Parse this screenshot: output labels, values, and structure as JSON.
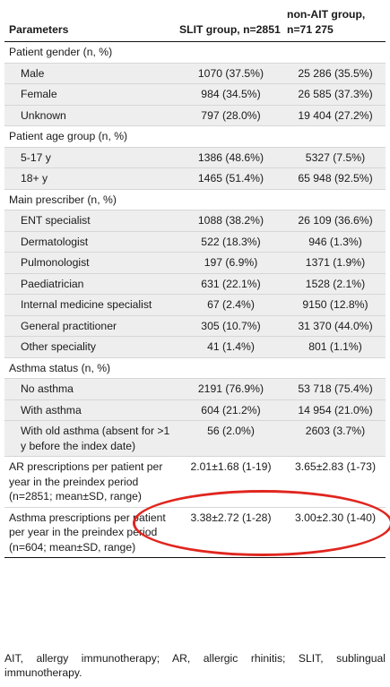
{
  "header": {
    "col1": "Parameters",
    "col2": "SLIT group, n=2851",
    "col3": "non-AIT group, n=71 275"
  },
  "rows": [
    {
      "type": "sec",
      "label": "Patient gender (n, %)",
      "slit": "",
      "nonait": ""
    },
    {
      "type": "sub",
      "label": "Male",
      "slit": "1070 (37.5%)",
      "nonait": "25 286 (35.5%)"
    },
    {
      "type": "sub",
      "label": "Female",
      "slit": "984 (34.5%)",
      "nonait": "26 585 (37.3%)"
    },
    {
      "type": "sub",
      "label": "Unknown",
      "slit": "797 (28.0%)",
      "nonait": "19 404 (27.2%)"
    },
    {
      "type": "sec",
      "label": "Patient age group (n, %)",
      "slit": "",
      "nonait": ""
    },
    {
      "type": "sub",
      "label": "5-17 y",
      "slit": "1386 (48.6%)",
      "nonait": "5327 (7.5%)"
    },
    {
      "type": "sub",
      "label": "18+ y",
      "slit": "1465 (51.4%)",
      "nonait": "65 948 (92.5%)"
    },
    {
      "type": "sec",
      "label": "Main prescriber (n, %)",
      "slit": "",
      "nonait": ""
    },
    {
      "type": "sub",
      "label": "ENT specialist",
      "slit": "1088 (38.2%)",
      "nonait": "26 109 (36.6%)"
    },
    {
      "type": "sub",
      "label": "Dermatologist",
      "slit": "522 (18.3%)",
      "nonait": "946 (1.3%)"
    },
    {
      "type": "sub",
      "label": "Pulmonologist",
      "slit": "197 (6.9%)",
      "nonait": "1371 (1.9%)"
    },
    {
      "type": "sub",
      "label": "Paediatrician",
      "slit": "631 (22.1%)",
      "nonait": "1528 (2.1%)"
    },
    {
      "type": "sub",
      "label": "Internal medicine specialist",
      "slit": "67 (2.4%)",
      "nonait": "9150 (12.8%)"
    },
    {
      "type": "sub",
      "label": "General practitioner",
      "slit": "305 (10.7%)",
      "nonait": "31 370 (44.0%)"
    },
    {
      "type": "sub",
      "label": "Other speciality",
      "slit": "41 (1.4%)",
      "nonait": "801 (1.1%)"
    },
    {
      "type": "sec",
      "label": "Asthma status (n, %)",
      "slit": "",
      "nonait": ""
    },
    {
      "type": "sub",
      "label": "No asthma",
      "slit": "2191 (76.9%)",
      "nonait": "53 718 (75.4%)"
    },
    {
      "type": "sub",
      "label": "With asthma",
      "slit": "604 (21.2%)",
      "nonait": "14 954 (21.0%)"
    },
    {
      "type": "sub",
      "label": "With old asthma (absent for >1 y before the index date)",
      "slit": "56 (2.0%)",
      "nonait": "2603 (3.7%)"
    },
    {
      "type": "plain",
      "label": "AR prescriptions per patient per year in the preindex period (n=2851; mean±SD, range)",
      "slit": "2.01±1.68 (1-19)",
      "nonait": "3.65±2.83 (1-73)"
    },
    {
      "type": "plain",
      "label": "Asthma prescriptions per patient per year in the preindex period (n=604; mean±SD, range)",
      "slit": "3.38±2.72 (1-28)",
      "nonait": "3.00±2.30 (1-40)"
    }
  ],
  "footnote": "AIT, allergy immunotherapy; AR, allergic rhinitis; SLIT, sublingual immunotherapy.",
  "annotation_color": "#e0261f"
}
